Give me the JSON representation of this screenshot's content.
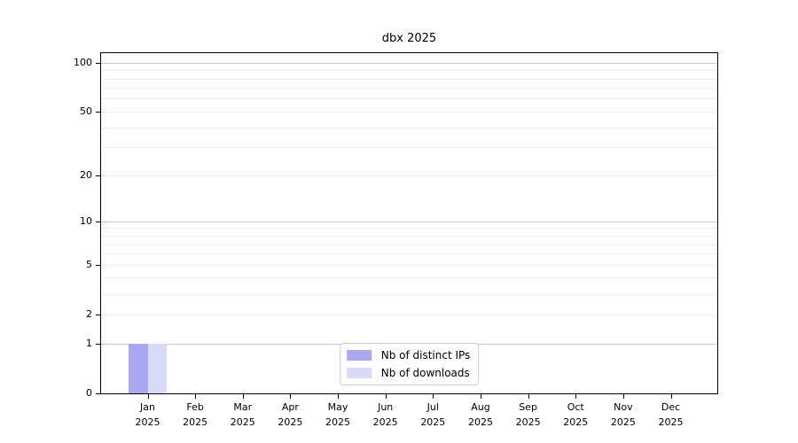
{
  "figure": {
    "background": "#ffffff"
  },
  "chart_data": {
    "type": "bar",
    "title": "dbx 2025",
    "categories": [
      "Jan",
      "Feb",
      "Mar",
      "Apr",
      "May",
      "Jun",
      "Jul",
      "Aug",
      "Sep",
      "Oct",
      "Nov",
      "Dec"
    ],
    "category_year": "2025",
    "series": [
      {
        "name": "Nb of distinct IPs",
        "color": "#a9a9f2",
        "values": [
          1,
          0,
          0,
          0,
          0,
          0,
          0,
          0,
          0,
          0,
          0,
          0
        ]
      },
      {
        "name": "Nb of downloads",
        "color": "#d9d9f8",
        "values": [
          1,
          0,
          0,
          0,
          0,
          0,
          0,
          0,
          0,
          0,
          0,
          0
        ]
      }
    ],
    "xlabel": "",
    "ylabel": "",
    "yscale": "log1p",
    "yticks": [
      0,
      1,
      2,
      5,
      10,
      20,
      50,
      100
    ],
    "ylim": [
      0,
      115
    ],
    "major_gridlines": [
      1,
      10,
      100
    ],
    "minor_gridlines": [
      2,
      3,
      4,
      5,
      6,
      7,
      8,
      9,
      20,
      30,
      40,
      50,
      60,
      70,
      80,
      90
    ],
    "grid": true,
    "legend_position": "lower center",
    "colors": {
      "axis": "#000000",
      "text": "#000000",
      "major_grid": "#c9c9c9",
      "minor_grid": "#ececec",
      "legend_border": "#cccccc"
    }
  }
}
